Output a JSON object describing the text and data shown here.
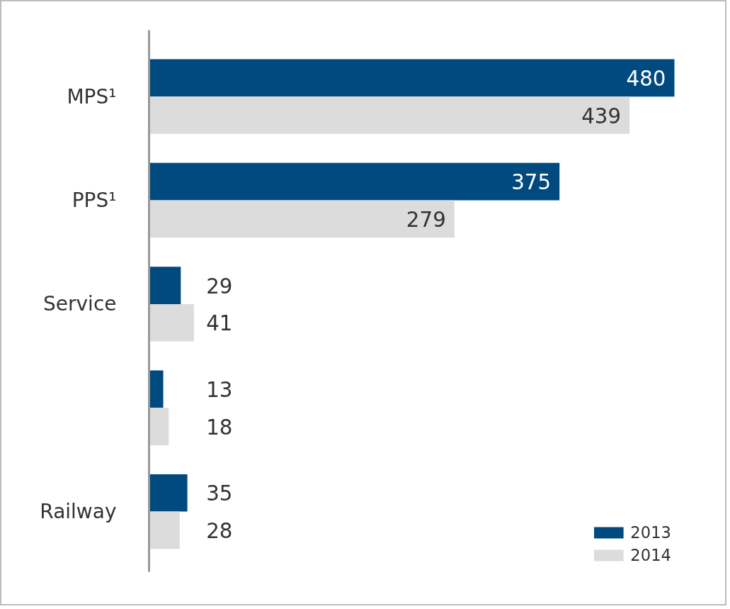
{
  "chart_data": {
    "type": "bar",
    "orientation": "horizontal",
    "categories": [
      "MPS¹",
      "PPS¹",
      "Service",
      null,
      "Railway"
    ],
    "series": [
      {
        "name": "2013",
        "color": "#004a7f",
        "values": [
          480,
          375,
          29,
          13,
          35
        ]
      },
      {
        "name": "2014",
        "color": "#dcdcdc",
        "values": [
          439,
          279,
          41,
          18,
          28
        ]
      }
    ],
    "data_labels": true,
    "legend": "bottom right",
    "grid": false
  }
}
